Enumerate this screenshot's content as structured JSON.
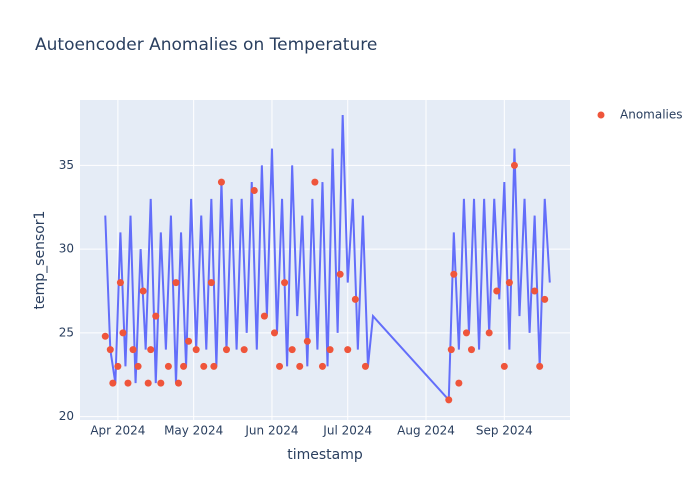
{
  "chart_data": {
    "type": "line",
    "title": "Autoencoder Anomalies on Temperature",
    "x_label": "timestamp",
    "y_label": "temp_sensor1",
    "xlim": [
      "2024-03-17",
      "2024-09-27"
    ],
    "xticks": [
      {
        "value": "2024-04-01",
        "label": "Apr 2024"
      },
      {
        "value": "2024-05-01",
        "label": "May 2024"
      },
      {
        "value": "2024-06-01",
        "label": "Jun 2024"
      },
      {
        "value": "2024-07-01",
        "label": "Jul 2024"
      },
      {
        "value": "2024-08-01",
        "label": "Aug 2024"
      },
      {
        "value": "2024-09-01",
        "label": "Sep 2024"
      }
    ],
    "ylim": [
      19.8,
      38.9
    ],
    "yticks": [
      20,
      25,
      30,
      35
    ],
    "grid": true,
    "series": [
      {
        "color": "#636efa",
        "mode": "lines",
        "x": [
          "2024-03-27",
          "2024-03-29",
          "2024-03-31",
          "2024-04-02",
          "2024-04-04",
          "2024-04-06",
          "2024-04-08",
          "2024-04-10",
          "2024-04-12",
          "2024-04-14",
          "2024-04-16",
          "2024-04-18",
          "2024-04-20",
          "2024-04-22",
          "2024-04-24",
          "2024-04-26",
          "2024-04-28",
          "2024-04-30",
          "2024-05-02",
          "2024-05-04",
          "2024-05-06",
          "2024-05-08",
          "2024-05-10",
          "2024-05-12",
          "2024-05-14",
          "2024-05-16",
          "2024-05-18",
          "2024-05-20",
          "2024-05-22",
          "2024-05-24",
          "2024-05-26",
          "2024-05-28",
          "2024-05-30",
          "2024-06-01",
          "2024-06-03",
          "2024-06-05",
          "2024-06-07",
          "2024-06-09",
          "2024-06-11",
          "2024-06-13",
          "2024-06-15",
          "2024-06-17",
          "2024-06-19",
          "2024-06-21",
          "2024-06-23",
          "2024-06-25",
          "2024-06-27",
          "2024-06-29",
          "2024-07-01",
          "2024-07-03",
          "2024-07-05",
          "2024-07-07",
          "2024-07-09",
          "2024-07-11",
          "2024-08-10",
          "2024-08-12",
          "2024-08-14",
          "2024-08-16",
          "2024-08-18",
          "2024-08-20",
          "2024-08-22",
          "2024-08-24",
          "2024-08-26",
          "2024-08-28",
          "2024-08-30",
          "2024-09-01",
          "2024-09-03",
          "2024-09-05",
          "2024-09-07",
          "2024-09-09",
          "2024-09-11",
          "2024-09-13",
          "2024-09-15",
          "2024-09-17",
          "2024-09-19"
        ],
        "values": [
          32,
          24,
          22,
          31,
          23,
          32,
          22,
          30,
          24,
          33,
          22,
          31,
          24,
          32,
          22,
          31,
          23,
          33,
          24,
          32,
          24,
          33,
          23,
          34,
          24,
          33,
          24,
          33,
          25,
          34,
          24,
          35,
          26,
          36,
          25,
          33,
          23,
          35,
          26,
          32,
          23,
          33,
          24,
          34,
          23,
          36,
          25,
          38,
          28,
          33,
          24,
          32,
          23,
          26,
          21,
          31,
          24,
          33,
          25,
          33,
          24,
          33,
          25,
          33,
          27,
          34,
          24,
          36,
          26,
          33,
          25,
          32,
          23,
          33,
          28
        ]
      },
      {
        "name": "Anomalies",
        "color": "#ef553b",
        "mode": "markers",
        "x": [
          "2024-03-27",
          "2024-03-29",
          "2024-03-30",
          "2024-04-01",
          "2024-04-02",
          "2024-04-03",
          "2024-04-05",
          "2024-04-07",
          "2024-04-09",
          "2024-04-11",
          "2024-04-13",
          "2024-04-14",
          "2024-04-16",
          "2024-04-18",
          "2024-04-21",
          "2024-04-24",
          "2024-04-25",
          "2024-04-27",
          "2024-04-29",
          "2024-05-02",
          "2024-05-05",
          "2024-05-08",
          "2024-05-09",
          "2024-05-12",
          "2024-05-14",
          "2024-05-21",
          "2024-05-25",
          "2024-05-29",
          "2024-06-02",
          "2024-06-04",
          "2024-06-06",
          "2024-06-09",
          "2024-06-12",
          "2024-06-15",
          "2024-06-18",
          "2024-06-21",
          "2024-06-24",
          "2024-06-28",
          "2024-07-01",
          "2024-07-04",
          "2024-07-08",
          "2024-08-10",
          "2024-08-11",
          "2024-08-12",
          "2024-08-14",
          "2024-08-17",
          "2024-08-19",
          "2024-08-26",
          "2024-08-29",
          "2024-09-01",
          "2024-09-03",
          "2024-09-05",
          "2024-09-13",
          "2024-09-15",
          "2024-09-17"
        ],
        "values": [
          24.8,
          24,
          22,
          23,
          28,
          25,
          22,
          24,
          23,
          27.5,
          22,
          24,
          26,
          22,
          23,
          28,
          22,
          23,
          24.5,
          24,
          23,
          28,
          23,
          34,
          24,
          24,
          33.5,
          26,
          25,
          23,
          28,
          24,
          23,
          24.5,
          34,
          23,
          24,
          28.5,
          24,
          27,
          23,
          21,
          24,
          28.5,
          22,
          25,
          24,
          25,
          27.5,
          23,
          28,
          35,
          27.5,
          23,
          27
        ]
      }
    ]
  }
}
